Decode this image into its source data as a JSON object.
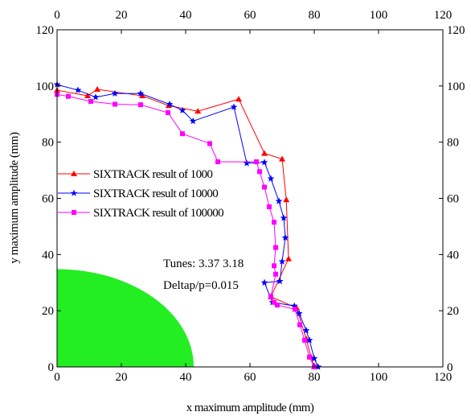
{
  "chart_data": {
    "type": "line",
    "xlabel": "x maximum amplitude (mm)",
    "ylabel": "y maximum amplitude (mm)",
    "xlim": [
      0,
      120
    ],
    "ylim": [
      0,
      120
    ],
    "x_ticks": [
      "0",
      "20",
      "40",
      "60",
      "80",
      "100",
      "120"
    ],
    "y_ticks": [
      "0",
      "20",
      "40",
      "60",
      "80",
      "100",
      "120"
    ],
    "grid": false,
    "mirrored_axes": true,
    "legend_placement": "middle-left",
    "annotations": [
      "Tunes: 3.37 3.18",
      "Deltap/p=0.015"
    ],
    "region": {
      "shape": "quarter-ellipse",
      "x_radius": 42.5,
      "y_radius": 34.8,
      "color": "#22ee22"
    },
    "series": [
      {
        "name": "SIXTRACK result of 1000",
        "color": "#ff0000",
        "marker": "triangle",
        "x": [
          0,
          9.5,
          12.5,
          26.5,
          34.7,
          43.8,
          56.5,
          64.5,
          70.0,
          71.3,
          72.0,
          66.5,
          74.5,
          77.5,
          79.0,
          80.0
        ],
        "y": [
          98.5,
          96.5,
          98.8,
          96.5,
          93.0,
          91.0,
          95.3,
          76.0,
          74.0,
          59.5,
          38.5,
          25.0,
          21.0,
          10.0,
          3.5,
          0
        ]
      },
      {
        "name": "SIXTRACK result of 10000",
        "color": "#0000ff",
        "marker": "star",
        "x": [
          0,
          6.5,
          12.0,
          18.0,
          26.0,
          35.0,
          39.0,
          42.3,
          55.0,
          59.0,
          64.5,
          66.5,
          69.0,
          70.5,
          71.0,
          70.0,
          69.3,
          64.5,
          67.0,
          73.8,
          75.3,
          77.5,
          78.5,
          80.0,
          81.2
        ],
        "y": [
          100.5,
          98.5,
          96.0,
          97.3,
          97.3,
          93.5,
          91.3,
          87.5,
          92.5,
          72.5,
          72.8,
          67.0,
          59.0,
          53.0,
          46.0,
          37.5,
          30.5,
          30.0,
          23.0,
          21.7,
          19.0,
          13.0,
          9.5,
          3.0,
          0
        ]
      },
      {
        "name": "SIXTRACK result of 100000",
        "color": "#ff00ff",
        "marker": "square",
        "x": [
          0,
          3.5,
          10.5,
          18.0,
          26.0,
          34.5,
          39.0,
          47.5,
          50.0,
          62.0,
          63.0,
          64.5,
          66.0,
          67.5,
          68.0,
          67.5,
          68.0,
          66.5,
          67.5,
          68.5,
          74.0,
          75.5,
          77.0,
          78.5,
          80.0
        ],
        "y": [
          97.0,
          96.3,
          94.5,
          93.5,
          93.3,
          90.5,
          83.0,
          79.5,
          73.0,
          73.0,
          69.5,
          64.0,
          57.0,
          51.5,
          42.5,
          36.0,
          33.0,
          25.0,
          23.0,
          22.0,
          20.5,
          15.0,
          9.5,
          3.5,
          0
        ]
      }
    ]
  }
}
